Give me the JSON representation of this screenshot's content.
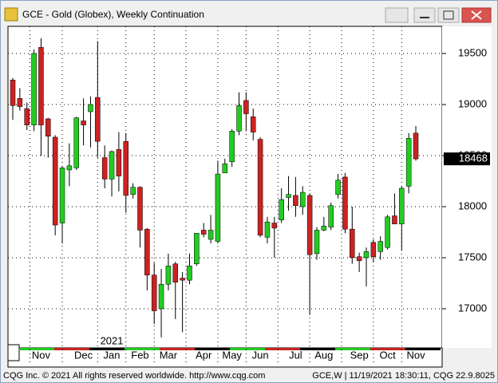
{
  "window_title": "GCE - Gold (Globex), Weekly Continuation",
  "footer_left": "CQG Inc. © 2021 All rights reserved worldwide. http://www.cqg.com",
  "footer_right": "GCE,W | 11/19/2021 18:30:11, CQG 22.9.8025",
  "chart_data": {
    "type": "candlestick",
    "year_label": "2021",
    "categories": [
      null,
      null,
      null,
      null,
      "Nov",
      null,
      null,
      null,
      null,
      null,
      "Dec",
      null,
      null,
      null,
      "Jan",
      null,
      null,
      null,
      "Feb",
      null,
      null,
      null,
      "Mar",
      null,
      null,
      null,
      null,
      "Apr",
      null,
      null,
      null,
      "May",
      null,
      null,
      null,
      "Jun",
      null,
      null,
      null,
      null,
      "Jul",
      null,
      null,
      null,
      "Aug",
      null,
      null,
      null,
      null,
      "Sep",
      null,
      null,
      null,
      "Oct",
      null,
      null,
      null,
      "Nov"
    ],
    "open": [
      19240,
      19060,
      18960,
      18800,
      19560,
      18860,
      18680,
      17840,
      18360,
      18380,
      18840,
      18930,
      19070,
      18480,
      18270,
      18560,
      18640,
      18120,
      18190,
      17780,
      17330,
      17000,
      17240,
      17440,
      17300,
      17280,
      17440,
      17770,
      17680,
      17660,
      18330,
      18440,
      18740,
      19040,
      18880,
      18660,
      17700,
      17840,
      17870,
      18090,
      18110,
      18000,
      18110,
      17540,
      17770,
      17800,
      18120,
      18290,
      17780,
      17510,
      17500,
      17650,
      17560,
      17600,
      17910,
      17830,
      18200,
      18720
    ],
    "high": [
      19260,
      19160,
      19020,
      19540,
      19650,
      18870,
      18700,
      18400,
      18620,
      18880,
      19060,
      19080,
      19620,
      18600,
      18550,
      18730,
      18720,
      18230,
      18200,
      17790,
      17450,
      17390,
      17540,
      17460,
      17360,
      17540,
      17740,
      17840,
      17920,
      18450,
      18470,
      18760,
      19120,
      19120,
      18960,
      18680,
      17900,
      17900,
      18180,
      18300,
      18290,
      18200,
      18130,
      17800,
      17900,
      18040,
      18320,
      18330,
      18000,
      17550,
      17600,
      17680,
      17710,
      17920,
      18130,
      18200,
      18720,
      18790
    ],
    "low": [
      18850,
      18940,
      18750,
      18740,
      18500,
      18480,
      17720,
      17640,
      18200,
      18360,
      18600,
      18580,
      18480,
      18180,
      18100,
      18150,
      17940,
      18080,
      17600,
      17180,
      16850,
      16720,
      17180,
      16900,
      16770,
      17240,
      17420,
      17700,
      17640,
      17640,
      18340,
      18390,
      18700,
      18740,
      18650,
      17700,
      17640,
      17500,
      17840,
      17960,
      17900,
      17920,
      16940,
      17480,
      17760,
      17770,
      18080,
      17740,
      17440,
      17360,
      17220,
      17460,
      17480,
      17580,
      17830,
      17570,
      18130,
      18450
    ],
    "close": [
      18990,
      18980,
      18800,
      19500,
      18800,
      18690,
      17820,
      18380,
      18400,
      18870,
      18800,
      19000,
      18640,
      18270,
      18540,
      18300,
      18110,
      18190,
      17770,
      17330,
      16980,
      17240,
      17420,
      17260,
      17280,
      17420,
      17740,
      17730,
      17770,
      18320,
      18420,
      18740,
      18990,
      18910,
      18730,
      17720,
      17850,
      17790,
      18070,
      18120,
      18010,
      18140,
      17530,
      17770,
      17810,
      18010,
      18260,
      17780,
      17500,
      17470,
      17560,
      17510,
      17660,
      17900,
      17830,
      18180,
      18670,
      18468
    ],
    "up_color": "#22cc22",
    "down_color": "#cc2222",
    "last_price": 18468,
    "ylim": [
      16617,
      19766
    ],
    "yticks": [
      17000,
      17500,
      18000,
      18500,
      19000,
      19500
    ],
    "grid": true
  }
}
